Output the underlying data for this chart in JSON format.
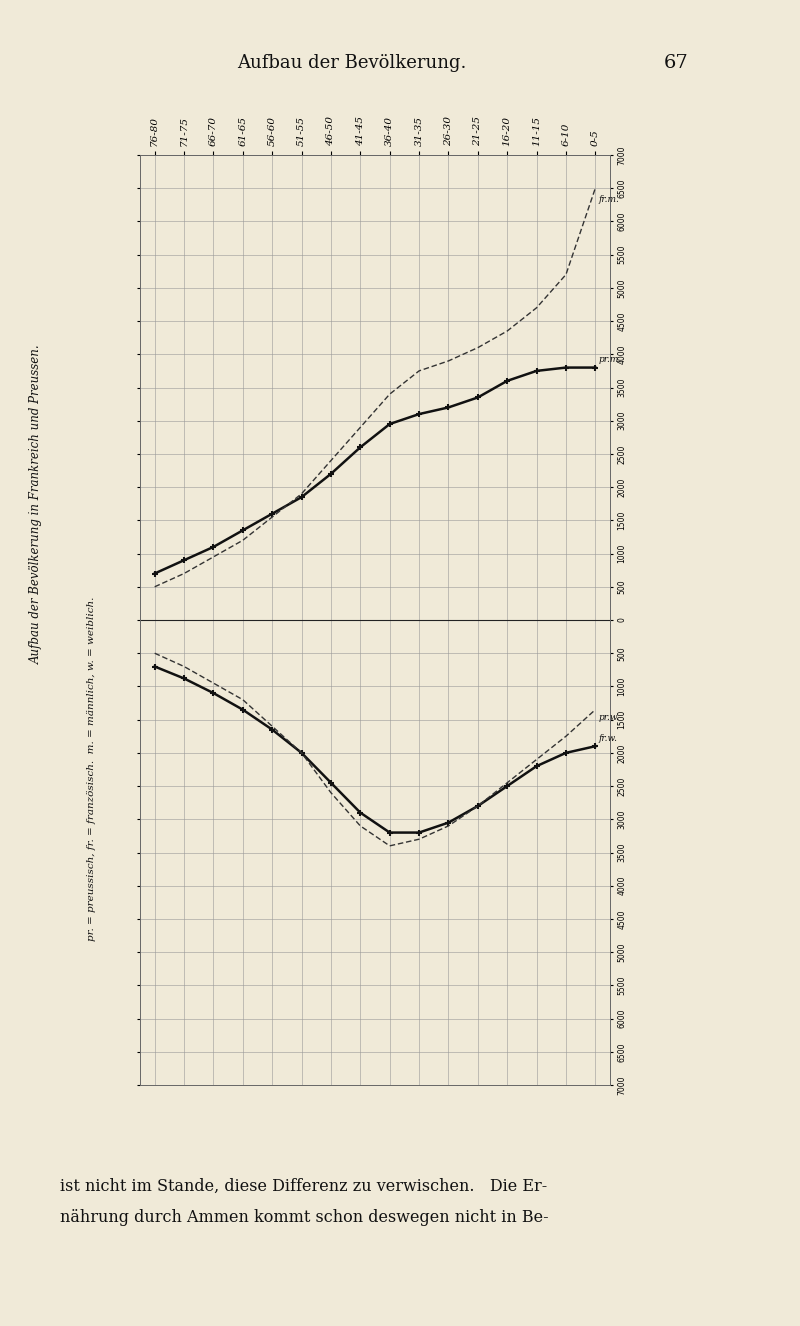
{
  "title": "Aufbau der Bevölkerung.",
  "page_number": "67",
  "background_color": "#f0ead8",
  "age_groups": [
    "76-80",
    "71-75",
    "66-70",
    "61-65",
    "56-60",
    "51-55",
    "46-50",
    "41-45",
    "36-40",
    "31-35",
    "26-30",
    "21-25",
    "16-20",
    "11-15",
    "6-10",
    "0-5"
  ],
  "pr_m": [
    700,
    900,
    1100,
    1350,
    1600,
    1850,
    2200,
    2600,
    2950,
    3100,
    3200,
    3350,
    3600,
    3750,
    3800,
    3800
  ],
  "fr_m": [
    500,
    700,
    950,
    1200,
    1550,
    1900,
    2400,
    2900,
    3400,
    3750,
    3900,
    4100,
    4350,
    4700,
    5200,
    6500
  ],
  "pr_w": [
    700,
    880,
    1100,
    1350,
    1650,
    2000,
    2450,
    2900,
    3200,
    3200,
    3050,
    2800,
    2500,
    2200,
    2000,
    1900
  ],
  "fr_w": [
    500,
    700,
    950,
    1200,
    1600,
    2000,
    2600,
    3100,
    3400,
    3300,
    3100,
    2800,
    2450,
    2100,
    1750,
    1350
  ],
  "ylabel_text1": "Aufbau der Bevölkerung in Frankreich und Preussen.",
  "ylabel_text2": "pr. = preussisch, fr. = französisch.  m. = männlich, w. = weiblich.",
  "footer_text1": "ist nicht im Stande, diese Differenz zu verwischen.   Die Er-",
  "footer_text2": "nährung durch Ammen kommt schon deswegen nicht in Be-"
}
